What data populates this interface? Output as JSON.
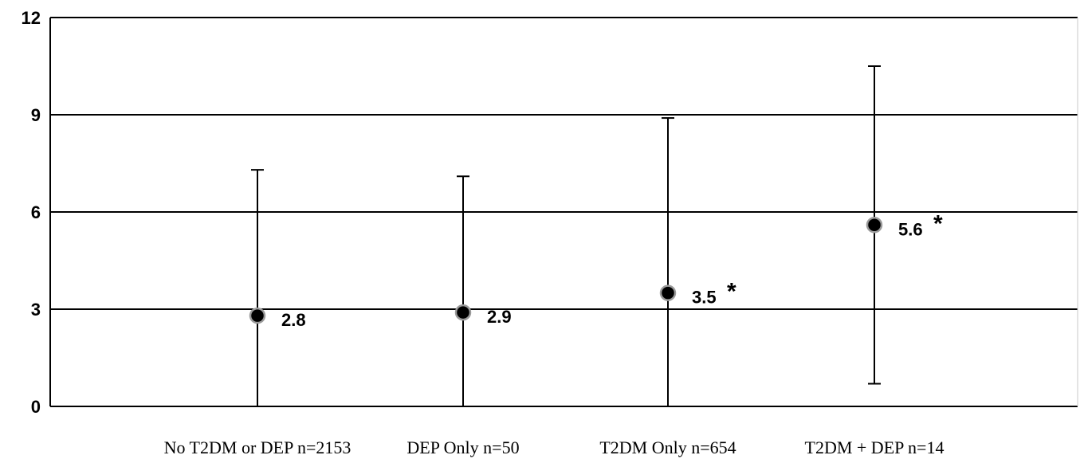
{
  "chart_data": {
    "type": "scatter",
    "categories": [
      "No T2DM or DEP n=2153",
      "DEP Only n=50",
      "T2DM Only n=654",
      "T2DM + DEP n=14"
    ],
    "values": [
      2.8,
      2.9,
      3.5,
      5.6
    ],
    "error_upper": [
      7.3,
      7.1,
      8.9,
      10.5
    ],
    "error_lower": [
      0,
      0,
      0,
      0.7
    ],
    "data_labels": [
      "2.8",
      "2.9",
      "3.5",
      "5.6"
    ],
    "annotations": [
      "",
      "",
      "*",
      "*"
    ],
    "yticks": [
      "0",
      "3",
      "6",
      "9",
      "12"
    ],
    "ylim": [
      0,
      12
    ],
    "grid": true,
    "title": "",
    "xlabel": "",
    "ylabel": "",
    "colors": {
      "marker_fill": "#000000",
      "marker_stroke": "#9a9a9a",
      "lines": "#000000",
      "background": "#ffffff"
    }
  }
}
